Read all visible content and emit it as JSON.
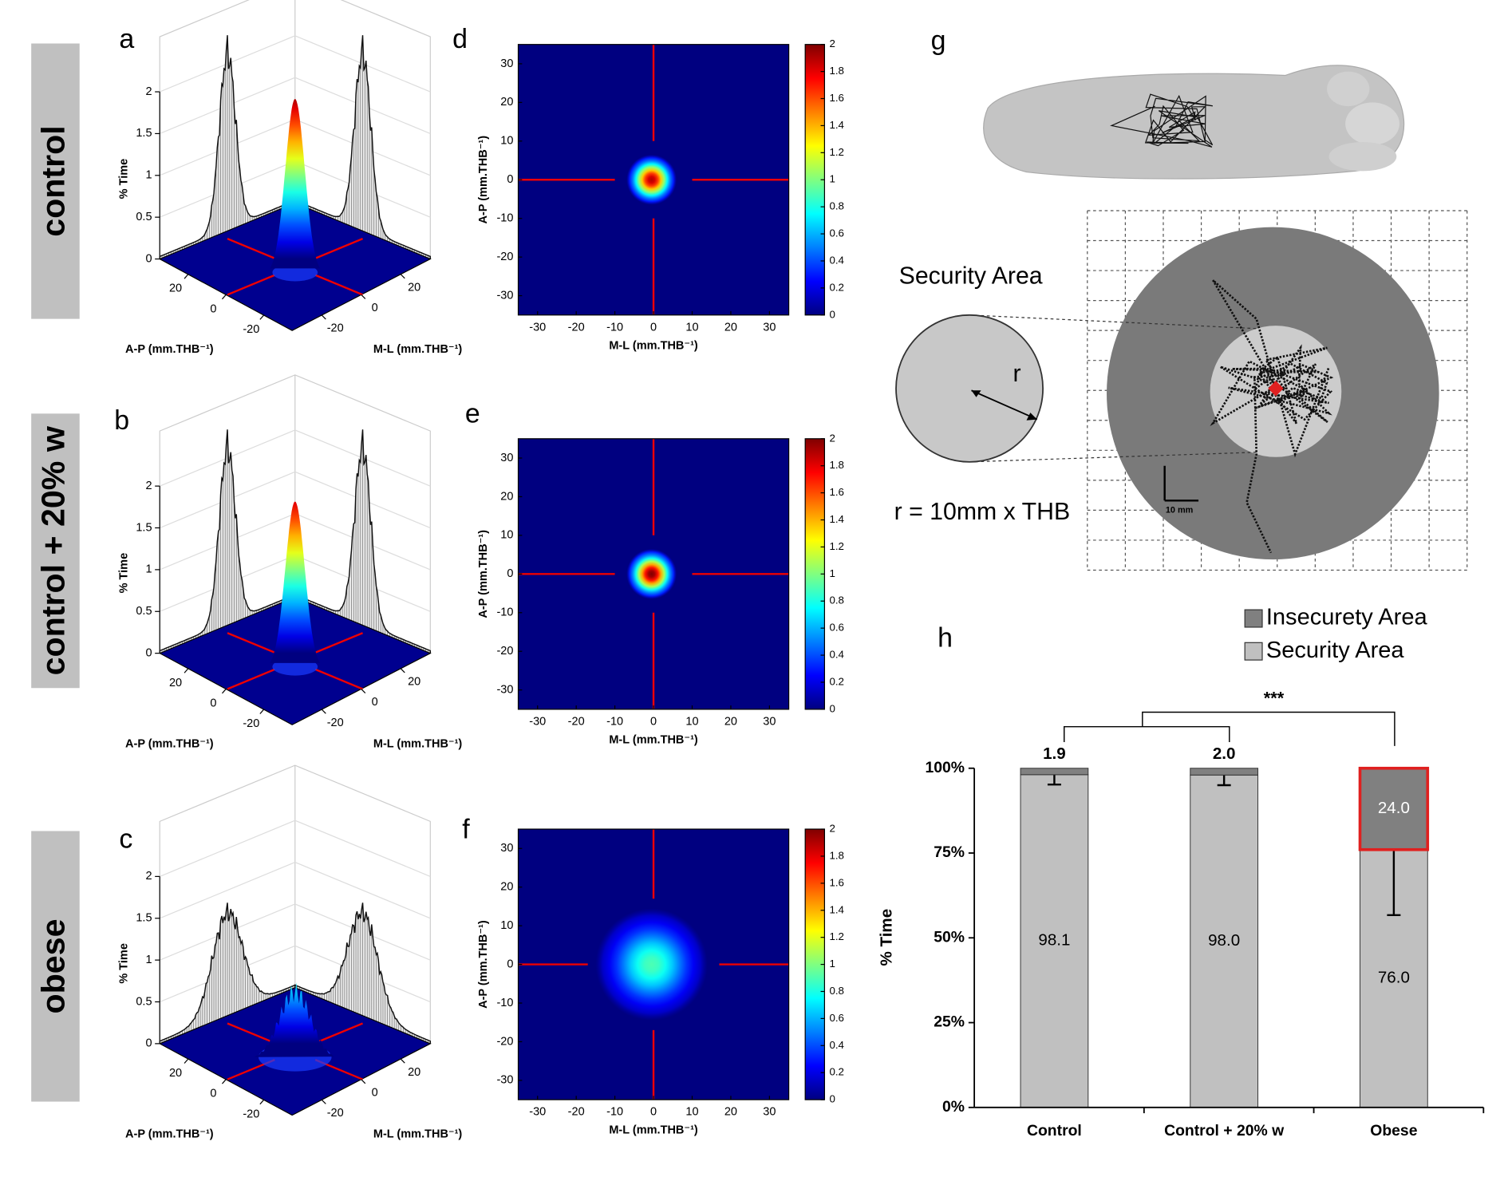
{
  "row_labels": [
    "control",
    "control + 20% w",
    "obese"
  ],
  "chart_data": [
    {
      "type": "surface3d",
      "panel": "a",
      "zlabel": "% Time",
      "xlabel": "A-P (mm.THB⁻¹)",
      "ylabel": "M-L (mm.THB⁻¹)",
      "xlim": [
        35,
        -35
      ],
      "ylim": [
        -35,
        35
      ],
      "zlim": [
        0,
        2
      ],
      "xticks": [
        20,
        0,
        -20
      ],
      "yticks": [
        -20,
        0,
        20
      ],
      "zticks": [
        0,
        0.5,
        1,
        1.5,
        2
      ],
      "peak": 2.1,
      "marginal_peak": 2.1,
      "colormap": "jet"
    },
    {
      "type": "surface3d",
      "panel": "b",
      "zlabel": "% Time",
      "xlabel": "A-P (mm.THB⁻¹)",
      "ylabel": "M-L (mm.THB⁻¹)",
      "xlim": [
        35,
        -35
      ],
      "ylim": [
        -35,
        35
      ],
      "zlim": [
        0,
        2
      ],
      "xticks": [
        20,
        0,
        -20
      ],
      "yticks": [
        -20,
        0,
        20
      ],
      "zticks": [
        0,
        0.5,
        1,
        1.5,
        2
      ],
      "peak": 2.0,
      "marginal_peak": 2.1,
      "colormap": "jet"
    },
    {
      "type": "surface3d",
      "panel": "c",
      "zlabel": "% Time",
      "xlabel": "A-P (mm.THB⁻¹)",
      "ylabel": "M-L (mm.THB⁻¹)",
      "xlim": [
        35,
        -35
      ],
      "ylim": [
        -35,
        35
      ],
      "zlim": [
        0,
        2
      ],
      "xticks": [
        20,
        0,
        -20
      ],
      "yticks": [
        -20,
        0,
        20
      ],
      "zticks": [
        0,
        0.5,
        1,
        1.5,
        2
      ],
      "peak": 0.8,
      "marginal_peak": 1.2,
      "colormap": "jet"
    },
    {
      "type": "heatmap",
      "panel": "d",
      "xlabel": "M-L (mm.THB⁻¹)",
      "ylabel": "A-P (mm.THB⁻¹)",
      "xlim": [
        -35,
        35
      ],
      "ylim": [
        -35,
        35
      ],
      "xticks": [
        -30,
        -20,
        -10,
        0,
        10,
        20,
        30
      ],
      "yticks": [
        -30,
        -20,
        -10,
        0,
        10,
        20,
        30
      ],
      "clim": [
        0,
        2
      ],
      "cticks": [
        0,
        0.2,
        0.4,
        0.6,
        0.8,
        1,
        1.2,
        1.4,
        1.6,
        1.8,
        2
      ],
      "peak": 1.9,
      "colormap": "jet"
    },
    {
      "type": "heatmap",
      "panel": "e",
      "xlabel": "M-L (mm.THB⁻¹)",
      "ylabel": "A-P (mm.THB⁻¹)",
      "xlim": [
        -35,
        35
      ],
      "ylim": [
        -35,
        35
      ],
      "xticks": [
        -30,
        -20,
        -10,
        0,
        10,
        20,
        30
      ],
      "yticks": [
        -30,
        -20,
        -10,
        0,
        10,
        20,
        30
      ],
      "clim": [
        0,
        2
      ],
      "cticks": [
        0,
        0.2,
        0.4,
        0.6,
        0.8,
        1,
        1.2,
        1.4,
        1.6,
        1.8,
        2
      ],
      "peak": 2.0,
      "colormap": "jet"
    },
    {
      "type": "heatmap",
      "panel": "f",
      "xlabel": "M-L (mm.THB⁻¹)",
      "ylabel": "A-P (mm.THB⁻¹)",
      "xlim": [
        -35,
        35
      ],
      "ylim": [
        -35,
        35
      ],
      "xticks": [
        -30,
        -20,
        -10,
        0,
        10,
        20,
        30
      ],
      "yticks": [
        -30,
        -20,
        -10,
        0,
        10,
        20,
        30
      ],
      "clim": [
        0,
        2
      ],
      "cticks": [
        0,
        0.2,
        0.4,
        0.6,
        0.8,
        1,
        1.2,
        1.4,
        1.6,
        1.8,
        2
      ],
      "peak": 0.9,
      "colormap": "jet"
    },
    {
      "type": "stacked_bar",
      "panel": "h",
      "ylabel": "% Time",
      "categories": [
        "Control",
        "Control + 20% w",
        "Obese"
      ],
      "series": [
        {
          "name": "Security Area",
          "color": "#c0c0c0",
          "values": [
            98.1,
            98.0,
            76.0
          ],
          "value_labels": [
            "98.1",
            "98.0",
            "76.0"
          ],
          "errors": [
            2.9,
            3.0,
            19.3
          ]
        },
        {
          "name": "Insecurety Area",
          "color": "#808080",
          "values": [
            1.9,
            2.0,
            24.0
          ],
          "value_labels": [
            "1.9",
            "2.0",
            "24.0"
          ]
        }
      ],
      "ylim": [
        0,
        100
      ],
      "yticks": [
        {
          "value": 0,
          "label": "0%"
        },
        {
          "value": 25,
          "label": "25%"
        },
        {
          "value": 50,
          "label": "50%"
        },
        {
          "value": 75,
          "label": "75%"
        },
        {
          "value": 100,
          "label": "100%"
        }
      ],
      "annotation": "***",
      "highlight_category": "Obese",
      "highlight_color": "#e0201f"
    }
  ],
  "panel_g": {
    "panel": "g",
    "label": "Security Area",
    "radius_label": "r",
    "formula": "r = 10mm x THB",
    "scale_bar": "10 mm"
  }
}
